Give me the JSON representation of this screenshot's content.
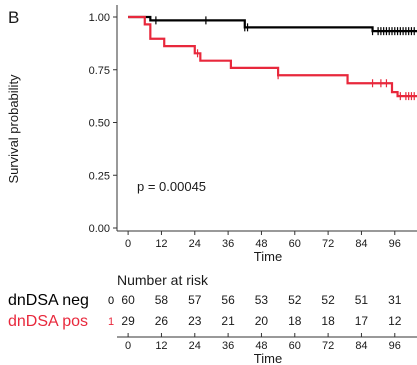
{
  "panel_label": "B",
  "chart_data": {
    "type": "line",
    "subtype": "kaplan-meier",
    "ylabel": "Survival probability",
    "xlabel": "Time",
    "xticks": [
      0,
      12,
      24,
      36,
      48,
      60,
      72,
      84,
      96
    ],
    "yticks": [
      0.0,
      0.25,
      0.5,
      0.75,
      1.0
    ],
    "ytick_labels": [
      "0.00",
      "0.25",
      "0.50",
      "0.75",
      "1.00"
    ],
    "xlim": [
      -4,
      104
    ],
    "ylim": [
      0,
      1
    ],
    "annotation": "p = 0.00045",
    "series": [
      {
        "color": "#000000",
        "steps": [
          [
            0,
            1.0
          ],
          [
            8,
            0.984
          ],
          [
            42,
            0.951
          ],
          [
            88,
            0.933
          ]
        ],
        "end": 104,
        "censor": [
          10,
          28,
          42,
          43,
          88,
          90,
          91,
          92,
          93,
          94,
          95,
          96,
          97,
          98,
          99,
          100,
          101,
          102,
          103
        ]
      },
      {
        "color": "#e8283c",
        "steps": [
          [
            0,
            1.0
          ],
          [
            6,
            0.965
          ],
          [
            8,
            0.897
          ],
          [
            13,
            0.862
          ],
          [
            24,
            0.828
          ],
          [
            26,
            0.793
          ],
          [
            37,
            0.759
          ],
          [
            54,
            0.724
          ],
          [
            79,
            0.686
          ],
          [
            95,
            0.644
          ],
          [
            97,
            0.625
          ]
        ],
        "end": 104,
        "censor": [
          25,
          54,
          88,
          91,
          93,
          98,
          100,
          101,
          102,
          103
        ]
      }
    ],
    "risk_table": {
      "title": "Number at risk",
      "xlabel": "Time",
      "times": [
        0,
        12,
        24,
        36,
        48,
        60,
        72,
        84,
        96
      ],
      "rows": [
        {
          "name": "dnDSA neg",
          "marker": "0",
          "color": "#000000",
          "values": [
            "60",
            "58",
            "57",
            "56",
            "53",
            "52",
            "52",
            "51",
            "31"
          ]
        },
        {
          "name": "dnDSA pos",
          "marker": "1",
          "color": "#e8283c",
          "values": [
            "29",
            "26",
            "23",
            "21",
            "20",
            "18",
            "18",
            "17",
            "12"
          ]
        }
      ]
    }
  }
}
